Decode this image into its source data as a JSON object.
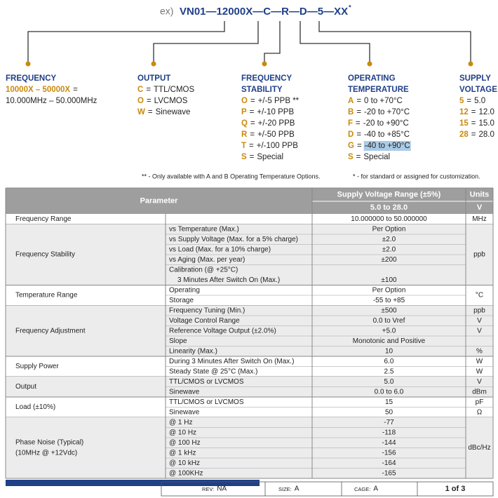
{
  "header": {
    "prefix": "ex)",
    "code": "VN01—12000X—C—R—D—5—XX",
    "star": "*"
  },
  "columns": [
    {
      "title": [
        "FREQUENCY"
      ],
      "items": [
        {
          "code": "10000X – 50000X",
          "sep": "="
        },
        {
          "text": "10.000MHz – 50.000MHz"
        }
      ]
    },
    {
      "title": [
        "OUTPUT"
      ],
      "items": [
        {
          "code": "C",
          "sep": "=",
          "text": "TTL/CMOS"
        },
        {
          "code": "O",
          "sep": "=",
          "text": "LVCMOS"
        },
        {
          "code": "W",
          "sep": "=",
          "text": "Sinewave"
        }
      ]
    },
    {
      "title": [
        "FREQUENCY",
        "STABILITY"
      ],
      "items": [
        {
          "code": "O",
          "sep": "=",
          "text": "+/-5 PPB **"
        },
        {
          "code": "P",
          "sep": "=",
          "text": "+/-10 PPB"
        },
        {
          "code": "Q",
          "sep": "=",
          "text": "+/-20 PPB"
        },
        {
          "code": "R",
          "sep": "=",
          "text": "+/-50 PPB"
        },
        {
          "code": "T",
          "sep": "=",
          "text": "+/-100 PPB"
        },
        {
          "code": "S",
          "sep": "=",
          "text": "Special"
        }
      ]
    },
    {
      "title": [
        "OPERATING",
        "TEMPERATURE"
      ],
      "items": [
        {
          "code": "A",
          "sep": "=",
          "text": "0 to +70°C"
        },
        {
          "code": "B",
          "sep": "=",
          "text": "-20 to +70°C"
        },
        {
          "code": "F",
          "sep": "=",
          "text": "-20 to +90°C"
        },
        {
          "code": "D",
          "sep": "=",
          "text": "-40 to +85°C"
        },
        {
          "code": "G",
          "sep": "=",
          "text": "-40 to +90°C",
          "highlighted": true
        },
        {
          "code": "S",
          "sep": "=",
          "text": "Special"
        }
      ]
    },
    {
      "title": [
        "SUPPLY",
        "VOLTAGE"
      ],
      "items": [
        {
          "code": "5",
          "sep": "=",
          "text": "5.0"
        },
        {
          "code": "12",
          "sep": "=",
          "text": "12.0"
        },
        {
          "code": "15",
          "sep": "=",
          "text": "15.0"
        },
        {
          "code": "28",
          "sep": "=",
          "text": "28.0"
        }
      ]
    }
  ],
  "notes": [
    "** - Only available with A and B Operating Temperature Options.",
    "* - for standard or assigned for customization."
  ],
  "table": {
    "header": {
      "parameter": "Parameter",
      "range": "Supply Voltage Range (±5%)",
      "units": "Units",
      "range_value": "5.0 to 28.0",
      "units_value": "V"
    },
    "groups": [
      {
        "parameter": [
          "Frequency Range"
        ],
        "rows": [
          {
            "value": "10.000000 to 50.000000",
            "unit": "MHz"
          }
        ]
      },
      {
        "parameter": [
          "Frequency Stability"
        ],
        "unit": "ppb",
        "rows": [
          {
            "condition": [
              "vs Temperature (Max.)"
            ],
            "value": "Per Option"
          },
          {
            "condition": [
              "vs Supply Voltage (Max. for a 5% charge)"
            ],
            "value": "±2.0"
          },
          {
            "condition": [
              "vs Load (Max. for a 10% charge)"
            ],
            "value": "±2.0"
          },
          {
            "condition": [
              "vs Aging (Max. per year)"
            ],
            "value": "±200"
          },
          {
            "condition": [
              "Calibration (@ +25°C)",
              "3 Minutes After Switch On (Max.)"
            ],
            "value": "±100"
          }
        ]
      },
      {
        "parameter": [
          "Temperature Range"
        ],
        "unit": "°C",
        "rows": [
          {
            "condition": [
              "Operating"
            ],
            "value": "Per Option"
          },
          {
            "condition": [
              "Storage"
            ],
            "value": "-55 to +85"
          }
        ]
      },
      {
        "parameter": [
          "Frequency Adjustment"
        ],
        "rows": [
          {
            "condition": [
              "Frequency Tuning (Min.)"
            ],
            "value": "±500",
            "unit": "ppb"
          },
          {
            "condition": [
              "Voltage Control Range"
            ],
            "value": "0.0 to Vref",
            "unit": "V"
          },
          {
            "condition": [
              "Reference Voltage Output (±2.0%)"
            ],
            "value": "+5.0",
            "unit": "V"
          },
          {
            "condition": [
              "Slope"
            ],
            "value": "Monotonic and Positive"
          },
          {
            "condition": [
              "Linearity (Max.)"
            ],
            "value": "10",
            "unit": "%"
          }
        ]
      },
      {
        "parameter": [
          "Supply Power"
        ],
        "rows": [
          {
            "condition": [
              "During 3 Minutes After Switch On (Max.)"
            ],
            "value": "6.0",
            "unit": "W"
          },
          {
            "condition": [
              "Steady State @ 25°C (Max.)"
            ],
            "value": "2.5",
            "unit": "W"
          }
        ]
      },
      {
        "parameter": [
          "Output"
        ],
        "rows": [
          {
            "condition": [
              "TTL/CMOS or LVCMOS"
            ],
            "value": "5.0",
            "unit": "V"
          },
          {
            "condition": [
              "Sinewave"
            ],
            "value": "0.0 to 6.0",
            "unit": "dBm"
          }
        ]
      },
      {
        "parameter": [
          "Load (±10%)"
        ],
        "rows": [
          {
            "condition": [
              "TTL/CMOS or LVCMOS"
            ],
            "value": "15",
            "unit": "pF"
          },
          {
            "condition": [
              "Sinewave"
            ],
            "value": "50",
            "unit": "Ω"
          }
        ]
      },
      {
        "parameter": [
          "Phase Noise (Typical)",
          "(10MHz @ +12Vdc)"
        ],
        "unit": "dBc/Hz",
        "rows": [
          {
            "condition": [
              "@ 1 Hz"
            ],
            "value": "-77"
          },
          {
            "condition": [
              "@ 10 Hz"
            ],
            "value": "-118"
          },
          {
            "condition": [
              "@ 100 Hz"
            ],
            "value": "-144"
          },
          {
            "condition": [
              "@ 1 kHz"
            ],
            "value": "-156"
          },
          {
            "condition": [
              "@ 10 kHz"
            ],
            "value": "-164"
          },
          {
            "condition": [
              "@ 100KHz"
            ],
            "value": "-165"
          }
        ]
      }
    ]
  },
  "footer": {
    "rev_label": "REV:",
    "rev": "NA",
    "size_label": "SIZE:",
    "size": "A",
    "cage_label": "CAGE:",
    "cage": "A",
    "page": "1 of 3"
  }
}
